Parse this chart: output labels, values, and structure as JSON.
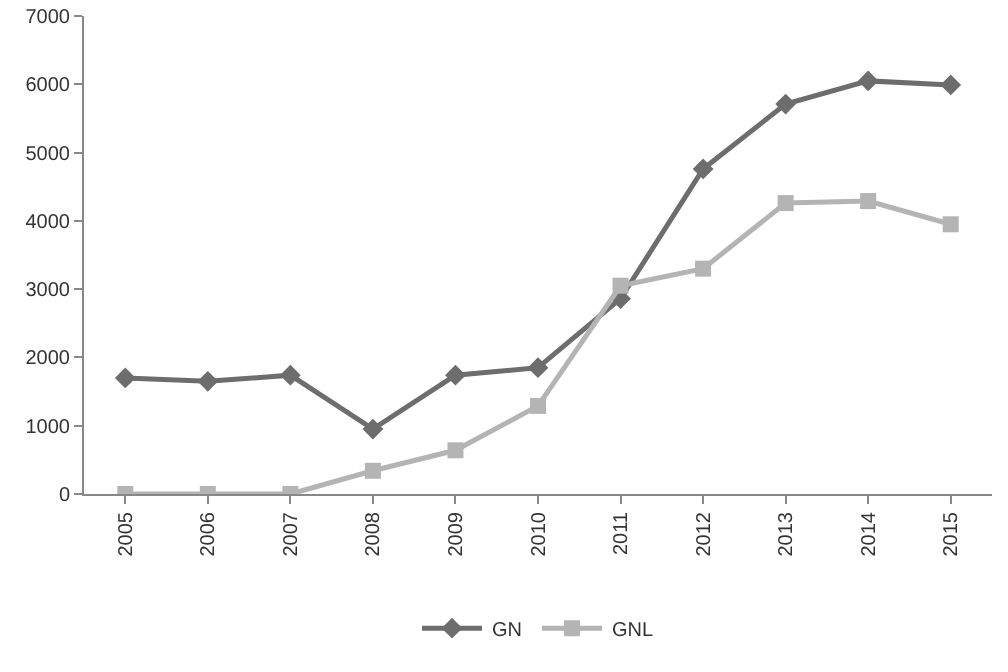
{
  "chart_data": {
    "type": "line",
    "categories": [
      "2005",
      "2006",
      "2007",
      "2008",
      "2009",
      "2010",
      "2011",
      "2012",
      "2013",
      "2014",
      "2015"
    ],
    "series": [
      {
        "name": "GN",
        "color": "#6d6d6d",
        "marker": "diamond",
        "values": [
          1700,
          1650,
          1740,
          950,
          1740,
          1850,
          2860,
          4760,
          5710,
          6050,
          5990
        ]
      },
      {
        "name": "GNL",
        "color": "#b4b4b4",
        "marker": "square",
        "values": [
          0,
          0,
          0,
          340,
          640,
          1290,
          3050,
          3300,
          4260,
          4290,
          3950
        ]
      }
    ],
    "ylim": [
      0,
      7000
    ],
    "yticks": [
      0,
      1000,
      2000,
      3000,
      4000,
      5000,
      6000,
      7000
    ],
    "grid": false,
    "legend": "bottom",
    "line_style": "solid"
  }
}
